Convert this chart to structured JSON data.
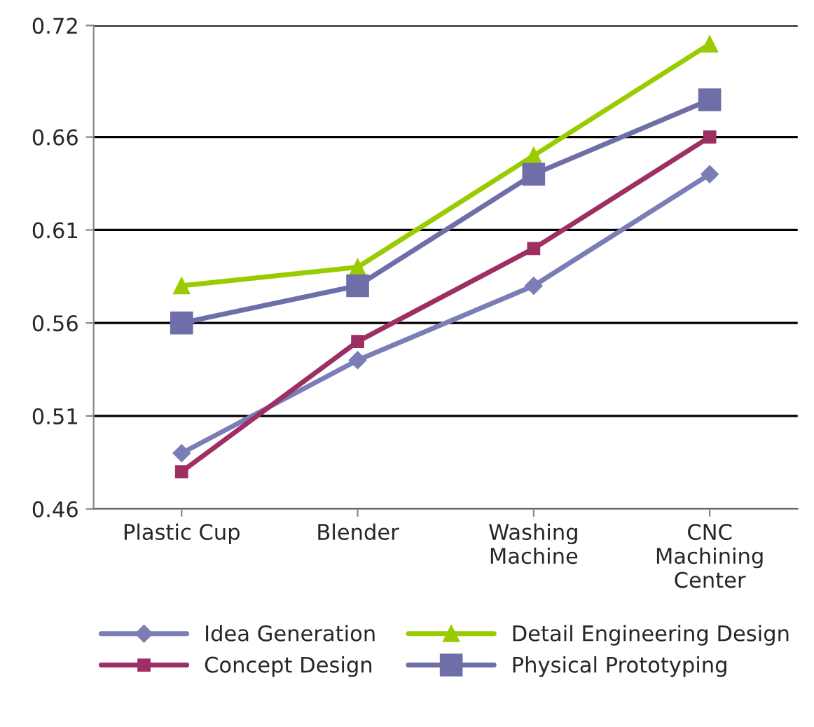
{
  "chart_data": {
    "type": "line",
    "categories": [
      "Plastic Cup",
      "Blender",
      "Washing\nMachine",
      "CNC\nMachining\nCenter"
    ],
    "series": [
      {
        "name": "Idea Generation",
        "color": "#7b7db6",
        "marker": "diamond",
        "values": [
          0.49,
          0.54,
          0.58,
          0.64
        ]
      },
      {
        "name": "Concept Design",
        "color": "#9e2f62",
        "marker": "square",
        "values": [
          0.48,
          0.55,
          0.6,
          0.66
        ]
      },
      {
        "name": "Detail Engineering Design",
        "color": "#99cc00",
        "marker": "triangle",
        "values": [
          0.58,
          0.59,
          0.65,
          0.71
        ]
      },
      {
        "name": "Physical Prototyping",
        "color": "#6e6ea8",
        "marker": "square",
        "values": [
          0.56,
          0.58,
          0.64,
          0.68
        ]
      }
    ],
    "ylim": [
      0.46,
      0.72
    ],
    "yticks": [
      0.46,
      0.51,
      0.56,
      0.61,
      0.66,
      0.72
    ],
    "grid": "y",
    "legend": "bottom",
    "line_style": "solid"
  }
}
